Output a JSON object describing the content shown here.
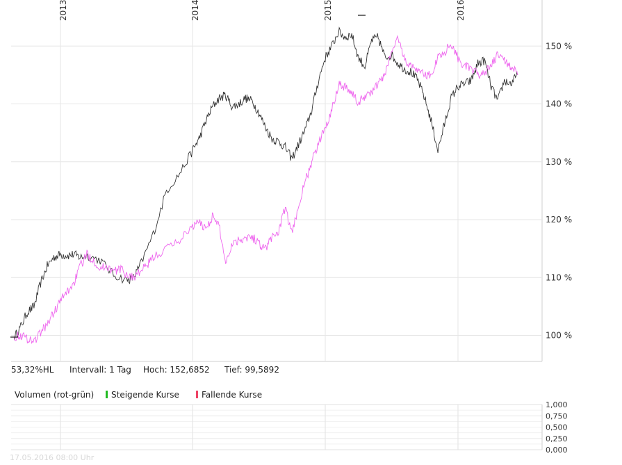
{
  "chart_data": [
    {
      "type": "line",
      "x_ticks": [
        "2013",
        "2014",
        "2015",
        "2016"
      ],
      "y_ticks": [
        "100 %",
        "110 %",
        "120 %",
        "130 %",
        "140 %",
        "150 %"
      ],
      "ylim": [
        95.5,
        157
      ],
      "grid": true,
      "series": [
        {
          "color": "#333333",
          "points": [
            [
              2012.65,
              99.6
            ],
            [
              2012.7,
              101.5
            ],
            [
              2012.75,
              104
            ],
            [
              2012.8,
              105
            ],
            [
              2012.85,
              109
            ],
            [
              2012.9,
              112
            ],
            [
              2012.95,
              113.5
            ],
            [
              2013.0,
              114
            ],
            [
              2013.05,
              113.8
            ],
            [
              2013.1,
              114
            ],
            [
              2013.15,
              113.5
            ],
            [
              2013.2,
              113.8
            ],
            [
              2013.3,
              113
            ],
            [
              2013.4,
              110.5
            ],
            [
              2013.5,
              109.5
            ],
            [
              2013.55,
              110
            ],
            [
              2013.6,
              112
            ],
            [
              2013.7,
              117.5
            ],
            [
              2013.8,
              125
            ],
            [
              2013.9,
              128
            ],
            [
              2014.0,
              132
            ],
            [
              2014.05,
              134
            ],
            [
              2014.1,
              137
            ],
            [
              2014.15,
              139.5
            ],
            [
              2014.2,
              141
            ],
            [
              2014.25,
              141.5
            ],
            [
              2014.3,
              139.5
            ],
            [
              2014.35,
              140
            ],
            [
              2014.4,
              141
            ],
            [
              2014.45,
              140.5
            ],
            [
              2014.5,
              138.5
            ],
            [
              2014.55,
              136
            ],
            [
              2014.6,
              134
            ],
            [
              2014.65,
              133.5
            ],
            [
              2014.7,
              132.5
            ],
            [
              2014.75,
              130.5
            ],
            [
              2014.8,
              133
            ],
            [
              2014.85,
              135.5
            ],
            [
              2014.9,
              139
            ],
            [
              2014.95,
              144
            ],
            [
              2015.0,
              148
            ],
            [
              2015.05,
              150
            ],
            [
              2015.1,
              152.5
            ],
            [
              2015.15,
              151.5
            ],
            [
              2015.2,
              152
            ],
            [
              2015.25,
              148
            ],
            [
              2015.3,
              146.5
            ],
            [
              2015.35,
              151
            ],
            [
              2015.4,
              151.5
            ],
            [
              2015.45,
              148
            ],
            [
              2015.5,
              148.5
            ],
            [
              2015.55,
              147
            ],
            [
              2015.6,
              146
            ],
            [
              2015.65,
              145.5
            ],
            [
              2015.7,
              144
            ],
            [
              2015.75,
              141
            ],
            [
              2015.8,
              137
            ],
            [
              2015.85,
              132
            ],
            [
              2015.9,
              136.5
            ],
            [
              2015.95,
              141
            ],
            [
              2016.0,
              143
            ],
            [
              2016.05,
              143.5
            ],
            [
              2016.1,
              144
            ],
            [
              2016.15,
              147
            ],
            [
              2016.2,
              147.5
            ],
            [
              2016.25,
              143
            ],
            [
              2016.3,
              140.5
            ],
            [
              2016.35,
              144
            ],
            [
              2016.4,
              143.5
            ],
            [
              2016.45,
              145
            ]
          ]
        },
        {
          "color": "#ee66ee",
          "points": [
            [
              2012.65,
              99.8
            ],
            [
              2012.7,
              100
            ],
            [
              2012.75,
              99.5
            ],
            [
              2012.8,
              99
            ],
            [
              2012.85,
              100.5
            ],
            [
              2012.9,
              102
            ],
            [
              2012.95,
              104
            ],
            [
              2013.0,
              106
            ],
            [
              2013.05,
              107.5
            ],
            [
              2013.1,
              109
            ],
            [
              2013.15,
              112
            ],
            [
              2013.2,
              114
            ],
            [
              2013.25,
              113
            ],
            [
              2013.3,
              111.5
            ],
            [
              2013.35,
              112
            ],
            [
              2013.4,
              111
            ],
            [
              2013.45,
              111.5
            ],
            [
              2013.5,
              110.5
            ],
            [
              2013.55,
              110
            ],
            [
              2013.6,
              111
            ],
            [
              2013.65,
              112
            ],
            [
              2013.7,
              113.5
            ],
            [
              2013.8,
              115
            ],
            [
              2013.9,
              116.5
            ],
            [
              2014.0,
              119
            ],
            [
              2014.05,
              119.5
            ],
            [
              2014.1,
              118.5
            ],
            [
              2014.15,
              120.5
            ],
            [
              2014.2,
              119
            ],
            [
              2014.25,
              112.5
            ],
            [
              2014.3,
              116
            ],
            [
              2014.35,
              116.5
            ],
            [
              2014.4,
              117
            ],
            [
              2014.45,
              117
            ],
            [
              2014.5,
              116
            ],
            [
              2014.55,
              115
            ],
            [
              2014.6,
              117
            ],
            [
              2014.65,
              118
            ],
            [
              2014.7,
              122
            ],
            [
              2014.75,
              117.5
            ],
            [
              2014.8,
              122.5
            ],
            [
              2014.85,
              126.5
            ],
            [
              2014.9,
              130
            ],
            [
              2014.95,
              133
            ],
            [
              2015.0,
              136
            ],
            [
              2015.05,
              139
            ],
            [
              2015.1,
              143.5
            ],
            [
              2015.15,
              143
            ],
            [
              2015.2,
              142
            ],
            [
              2015.25,
              140
            ],
            [
              2015.3,
              141.5
            ],
            [
              2015.35,
              142
            ],
            [
              2015.4,
              143.5
            ],
            [
              2015.45,
              145
            ],
            [
              2015.5,
              149
            ],
            [
              2015.55,
              151.5
            ],
            [
              2015.6,
              147.5
            ],
            [
              2015.65,
              146.5
            ],
            [
              2015.7,
              146
            ],
            [
              2015.75,
              145
            ],
            [
              2015.8,
              145
            ],
            [
              2015.85,
              148
            ],
            [
              2015.9,
              149
            ],
            [
              2015.95,
              150.5
            ],
            [
              2016.0,
              148
            ],
            [
              2016.05,
              146.5
            ],
            [
              2016.1,
              146
            ],
            [
              2016.15,
              145
            ],
            [
              2016.2,
              145.5
            ],
            [
              2016.25,
              146.5
            ],
            [
              2016.3,
              148.5
            ],
            [
              2016.35,
              147.5
            ],
            [
              2016.4,
              146.5
            ],
            [
              2016.45,
              145
            ]
          ]
        }
      ]
    },
    {
      "type": "bar",
      "y_ticks": [
        "1,000",
        "0,750",
        "0,500",
        "0,250",
        "0,000"
      ],
      "ylim": [
        0,
        1
      ],
      "values": []
    }
  ],
  "info": {
    "performance": "53,32%HL",
    "interval": "Intervall: 1 Tag",
    "high": "Hoch: 152,6852",
    "low": "Tief: 99,5892"
  },
  "volume_legend": {
    "label": "Volumen (rot-grün)",
    "rising": "Steigende Kurse",
    "rising_color": "#22bb22",
    "falling": "Fallende Kurse",
    "falling_color": "#ee4466"
  },
  "timestamp": "17.05.2016 08:00 Uhr"
}
